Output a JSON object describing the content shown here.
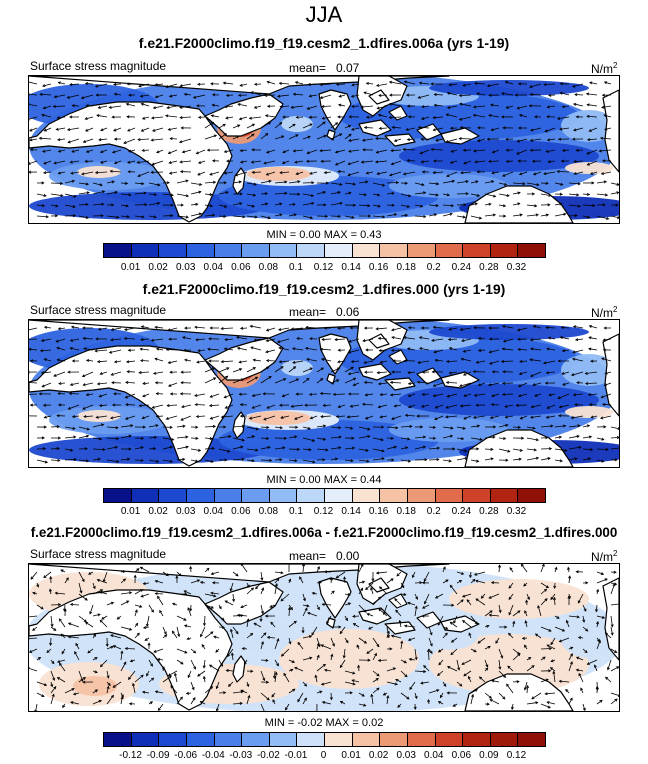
{
  "season": "JJA",
  "panels": [
    {
      "title": "f.e21.F2000climo.f19_f19.cesm2_1.dfires.006a (yrs 1-19)",
      "variable": "Surface stress magnitude",
      "mean_label": "mean=",
      "mean_value": "0.07",
      "units": "N/m",
      "units_sup": "2",
      "min_label": "MIN =",
      "min_value": "0.00",
      "max_label": "MAX =",
      "max_value": "0.43",
      "style": "full"
    },
    {
      "title": "f.e21.F2000climo.f19_f19.cesm2_1.dfires.000 (yrs 1-19)",
      "variable": "Surface stress magnitude",
      "mean_label": "mean=",
      "mean_value": "0.06",
      "units": "N/m",
      "units_sup": "2",
      "min_label": "MIN =",
      "min_value": "0.00",
      "max_label": "MAX =",
      "max_value": "0.44",
      "style": "full"
    },
    {
      "title": "f.e21.F2000climo.f19_f19.cesm2_1.dfires.006a - f.e21.F2000climo.f19_f19.cesm2_1.dfires.000",
      "variable": "Surface stress magnitude",
      "mean_label": "mean=",
      "mean_value": "0.00",
      "units": "N/m",
      "units_sup": "2",
      "min_label": "MIN =",
      "min_value": "-0.02",
      "max_label": "MAX =",
      "max_value": "0.02",
      "style": "diff"
    }
  ],
  "colorbars": [
    {
      "ticks": [
        "0.01",
        "0.02",
        "0.03",
        "0.04",
        "0.06",
        "0.08",
        "0.1",
        "0.12",
        "0.14",
        "0.16",
        "0.18",
        "0.2",
        "0.24",
        "0.28",
        "0.32"
      ],
      "colors": [
        "#08108a",
        "#0f2fb8",
        "#1c49cf",
        "#2d62e0",
        "#4a7fe9",
        "#6a9df0",
        "#91bcf5",
        "#bcd7f8",
        "#e4eefb",
        "#f9e2d2",
        "#f5c2a5",
        "#ec9a76",
        "#e06c4b",
        "#cd4228",
        "#b22412",
        "#8e1006"
      ]
    },
    {
      "ticks": [
        "-0.12",
        "-0.09",
        "-0.06",
        "-0.04",
        "-0.03",
        "-0.02",
        "-0.01",
        "0",
        "0.01",
        "0.02",
        "0.03",
        "0.04",
        "0.06",
        "0.09",
        "0.12"
      ],
      "colors": [
        "#08108a",
        "#0f2fb8",
        "#1c49cf",
        "#2d62e0",
        "#4a7fe9",
        "#6a9df0",
        "#91bcf5",
        "#cfe1f8",
        "#f9e2d2",
        "#f5c2a5",
        "#ec9a76",
        "#e06c4b",
        "#cd4228",
        "#b22412",
        "#a01a0c",
        "#8e1006"
      ]
    }
  ],
  "chart_data": [
    {
      "type": "heatmap",
      "title": "f.e21.F2000climo.f19_f19.cesm2_1.dfires.006a (yrs 1-19)",
      "variable": "Surface stress magnitude",
      "units": "N/m2",
      "mean": 0.07,
      "min": 0.0,
      "max": 0.43,
      "levels": [
        0.01,
        0.02,
        0.03,
        0.04,
        0.06,
        0.08,
        0.1,
        0.12,
        0.14,
        0.16,
        0.18,
        0.2,
        0.24,
        0.28,
        0.32
      ],
      "overlay": "wind stress vectors"
    },
    {
      "type": "heatmap",
      "title": "f.e21.F2000climo.f19_f19.cesm2_1.dfires.000 (yrs 1-19)",
      "variable": "Surface stress magnitude",
      "units": "N/m2",
      "mean": 0.06,
      "min": 0.0,
      "max": 0.44,
      "levels": [
        0.01,
        0.02,
        0.03,
        0.04,
        0.06,
        0.08,
        0.1,
        0.12,
        0.14,
        0.16,
        0.18,
        0.2,
        0.24,
        0.28,
        0.32
      ],
      "overlay": "wind stress vectors"
    },
    {
      "type": "heatmap",
      "title": "f.e21.F2000climo.f19_f19.cesm2_1.dfires.006a - f.e21.F2000climo.f19_f19.cesm2_1.dfires.000",
      "variable": "Surface stress magnitude",
      "units": "N/m2",
      "mean": 0.0,
      "min": -0.02,
      "max": 0.02,
      "levels": [
        -0.12,
        -0.09,
        -0.06,
        -0.04,
        -0.03,
        -0.02,
        -0.01,
        0,
        0.01,
        0.02,
        0.03,
        0.04,
        0.06,
        0.09,
        0.12
      ],
      "overlay": "wind stress difference vectors"
    }
  ]
}
